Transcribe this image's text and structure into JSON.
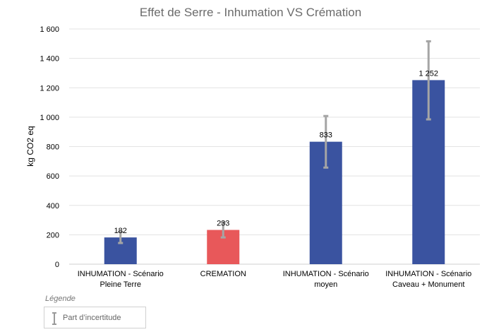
{
  "colors": {
    "inhumation": "#3a53a0",
    "cremation": "#e8585a",
    "error_bar": "#a5a5a5",
    "grid": "#e3e3e3",
    "axis_text": "#000000",
    "title": "#6b6b6b"
  },
  "legend": {
    "title": "Légende",
    "item_label": "Part d’incertitude",
    "item_icon": "error-bar-icon"
  },
  "chart_data": {
    "type": "bar",
    "title": "Effet de Serre - Inhumation VS Crémation",
    "xlabel": "",
    "ylabel": "kg CO2 eq",
    "ylim": [
      0,
      1600
    ],
    "yticks": [
      0,
      200,
      400,
      600,
      800,
      1000,
      1200,
      1400,
      1600
    ],
    "ytick_labels": [
      "0",
      "200",
      "400",
      "600",
      "800",
      "1 000",
      "1 200",
      "1 400",
      "1 600"
    ],
    "grid": true,
    "categories": [
      [
        "INHUMATION - Scénario",
        "Pleine Terre"
      ],
      [
        "CREMATION"
      ],
      [
        "INHUMATION - Scénario",
        "moyen"
      ],
      [
        "INHUMATION - Scénario",
        "Caveau + Monument"
      ]
    ],
    "values": [
      182,
      233,
      833,
      1252
    ],
    "value_labels": [
      "182",
      "233",
      "833",
      "1 252"
    ],
    "error_low": [
      144,
      182,
      657,
      985
    ],
    "error_high": [
      220,
      283,
      1008,
      1516
    ],
    "bar_colors": [
      "#3a53a0",
      "#e8585a",
      "#3a53a0",
      "#3a53a0"
    ]
  }
}
